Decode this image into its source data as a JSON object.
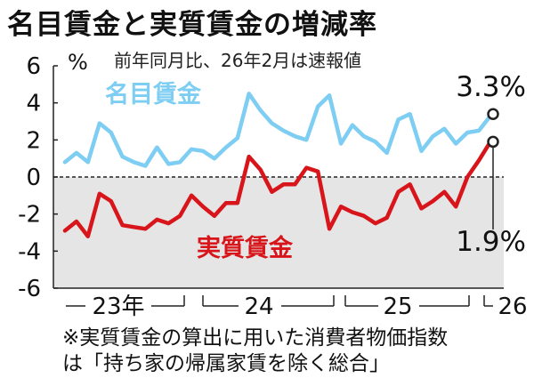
{
  "title": "名目賃金と実質賃金の増減率",
  "subtitle": "前年同月比、26年2月は速報値",
  "unit": "%",
  "footnote_lines": [
    "※実質賃金の算出に用いた消費者物価指数",
    "は「持ち家の帰属家賃を除く総合」"
  ],
  "colors": {
    "nominal": "#7ecdf2",
    "real": "#d7151a",
    "negative_zone": "#e5e5e5"
  },
  "chart_data": {
    "type": "line",
    "ylim": [
      -6,
      6
    ],
    "yticks": [
      6,
      4,
      2,
      0,
      -2,
      -4,
      -6
    ],
    "xlabel": "",
    "ylabel": "%",
    "x_axis_labels": [
      "23年",
      "24",
      "25",
      "26"
    ],
    "series": [
      {
        "name": "名目賃金",
        "values": [
          0.8,
          1.3,
          0.8,
          2.9,
          2.4,
          1.1,
          0.8,
          0.6,
          1.6,
          0.7,
          0.8,
          1.5,
          1.4,
          1.0,
          1.6,
          2.1,
          4.5,
          3.6,
          2.9,
          2.5,
          2.2,
          2.0,
          3.8,
          4.4,
          1.8,
          2.8,
          2.2,
          1.9,
          1.3,
          3.1,
          3.4,
          1.4,
          2.2,
          2.6,
          1.8,
          2.4,
          2.5,
          3.3
        ]
      },
      {
        "name": "実質賃金",
        "values": [
          -2.9,
          -2.4,
          -3.2,
          -0.9,
          -1.3,
          -2.6,
          -2.7,
          -2.8,
          -2.3,
          -2.5,
          -2.1,
          -1.0,
          -1.6,
          -2.1,
          -1.4,
          -1.4,
          1.1,
          0.4,
          -0.8,
          -0.4,
          -0.4,
          0.5,
          0.3,
          -2.8,
          -1.6,
          -1.9,
          -2.1,
          -2.5,
          -2.2,
          -0.8,
          -0.4,
          -1.7,
          -1.3,
          -0.8,
          -1.6,
          0.0,
          0.9,
          1.9
        ]
      }
    ],
    "annotations": [
      {
        "series": "名目賃金",
        "label": "3.3%",
        "value": 3.3
      },
      {
        "series": "実質賃金",
        "label": "1.9%",
        "value": 1.9
      }
    ]
  }
}
